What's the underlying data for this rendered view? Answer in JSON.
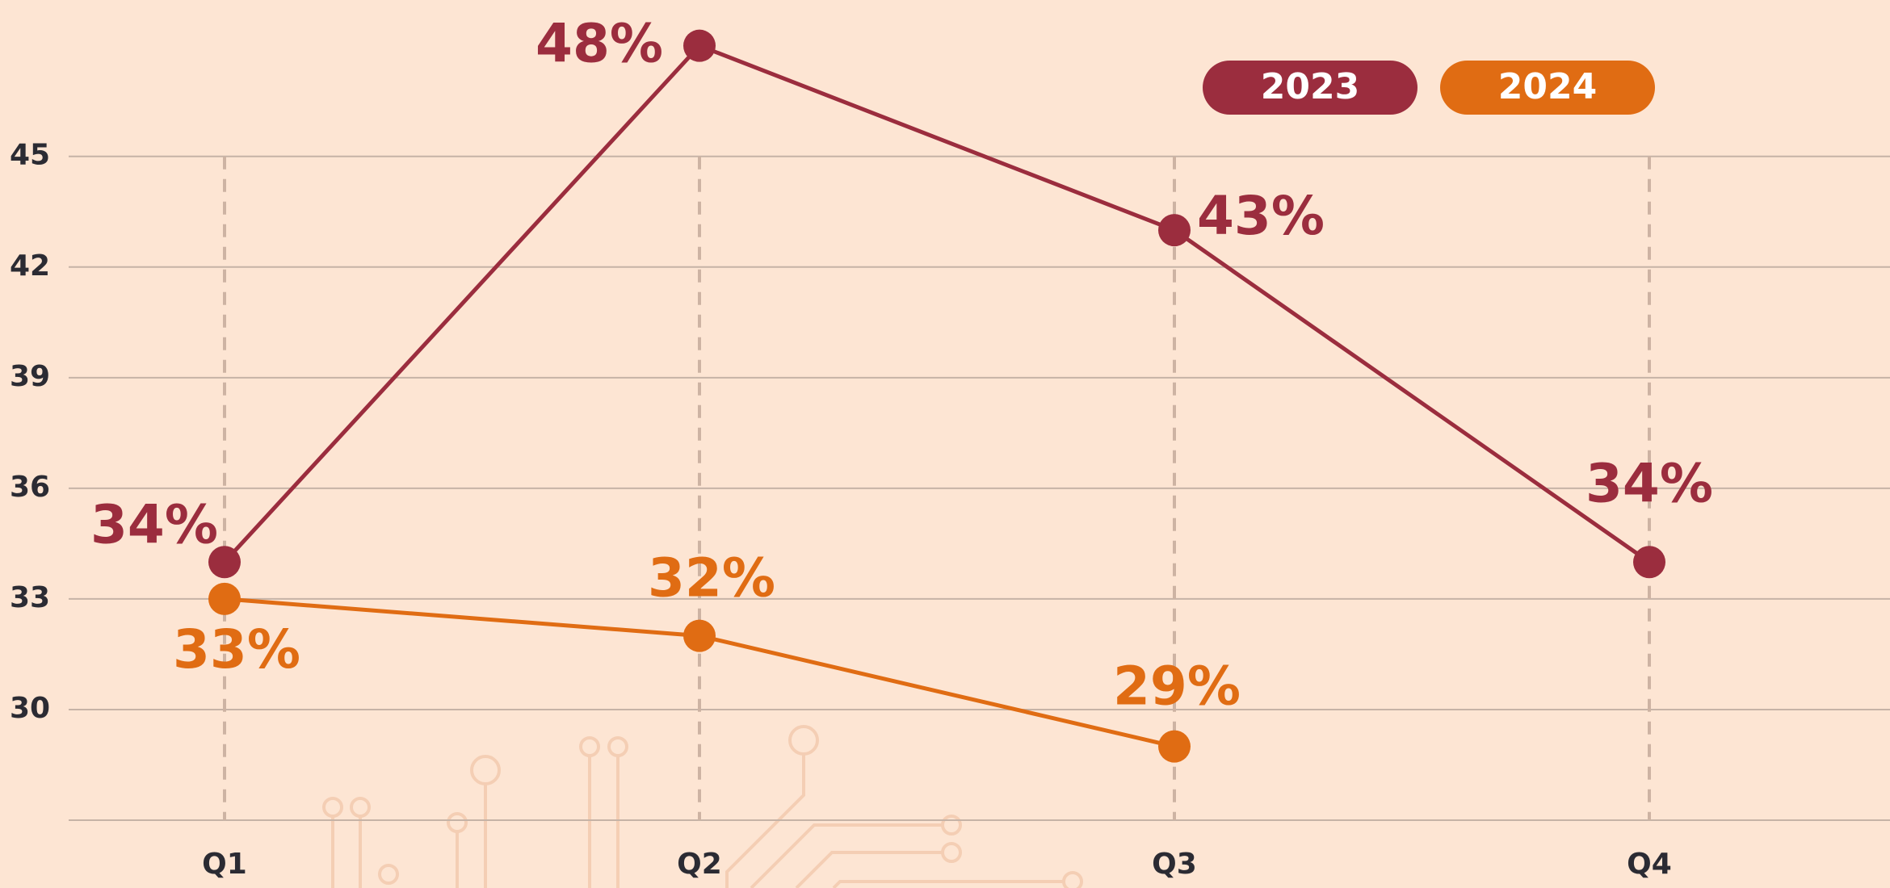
{
  "chart_data": {
    "type": "line",
    "categories": [
      "Q1",
      "Q2",
      "Q3",
      "Q4"
    ],
    "series": [
      {
        "name": "2023",
        "color": "#9b2d3e",
        "values": [
          34,
          48,
          43,
          34
        ],
        "value_labels": [
          "34%",
          "48%",
          "43%",
          "34%"
        ]
      },
      {
        "name": "2024",
        "color": "#e06c13",
        "values": [
          33,
          32,
          29,
          null
        ],
        "value_labels": [
          "33%",
          "32%",
          "29%",
          null
        ]
      }
    ],
    "ylim": [
      27,
      49
    ],
    "yticks": [
      30,
      33,
      36,
      39,
      42,
      45
    ],
    "grid": true
  }
}
